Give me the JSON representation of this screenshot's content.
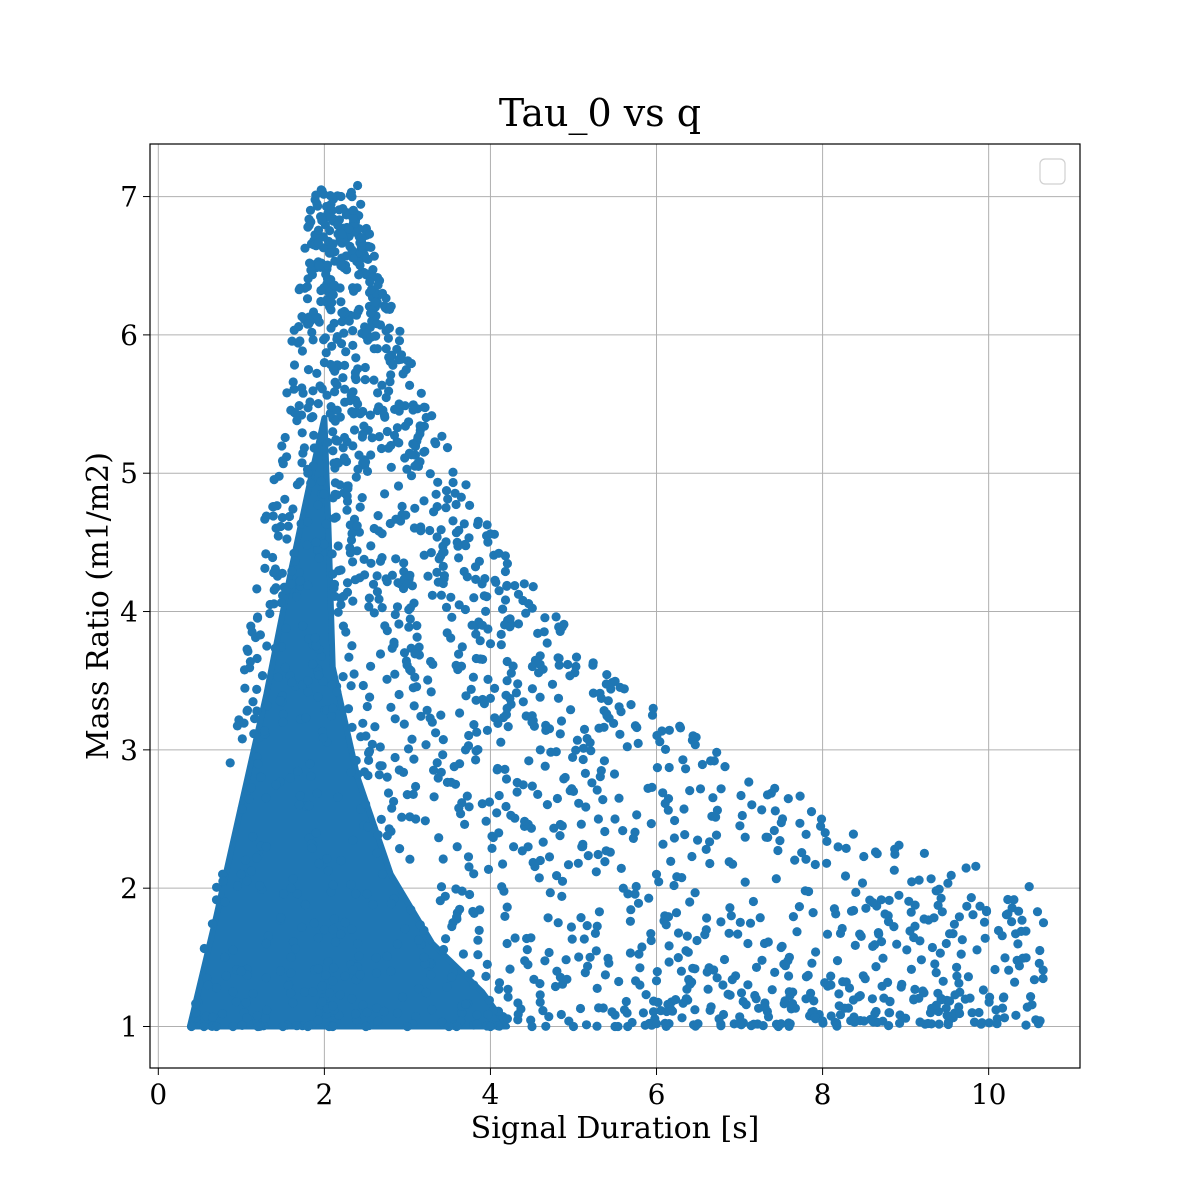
{
  "chart_data": {
    "type": "scatter",
    "title": "Tau_0 vs q",
    "xlabel": "Signal Duration [s]",
    "ylabel": "Mass Ratio (m1/m2)",
    "xlim": [
      -0.1,
      11.1
    ],
    "ylim": [
      0.7,
      7.38
    ],
    "xticks": [
      0,
      2,
      4,
      6,
      8,
      10
    ],
    "yticks": [
      1,
      2,
      3,
      4,
      5,
      6,
      7
    ],
    "grid": true,
    "legend": "upper-right, empty",
    "marker_color": "#1f77b4",
    "series": [
      {
        "x": [
          0.4,
          0.55,
          0.7,
          0.9,
          1.2,
          1.5,
          1.8,
          2.1,
          2.5,
          3.0,
          3.5,
          4.0,
          4.5,
          5.0,
          5.5,
          6.0,
          6.5,
          7.0,
          7.5,
          8.0,
          8.5,
          9.0,
          9.5,
          10.1,
          10.45,
          10.6,
          0.45,
          0.6,
          0.8,
          1.0,
          1.3,
          1.6,
          2.0,
          2.4,
          2.8,
          3.2,
          3.8,
          4.2,
          4.8,
          5.2,
          5.8,
          6.3,
          6.8,
          7.2,
          7.8,
          8.2,
          8.8,
          9.3,
          9.8,
          0.8,
          1.0,
          1.3,
          1.6,
          1.9,
          2.2,
          2.7,
          3.1,
          3.6,
          4.1,
          4.6,
          5.1,
          5.6,
          6.1,
          6.6,
          7.1,
          7.6,
          8.1,
          8.6,
          9.1,
          1.2,
          1.5,
          1.8,
          2.1,
          2.5,
          2.9,
          3.3,
          3.7,
          4.2,
          4.6,
          5.0,
          5.5,
          6.0,
          6.4,
          6.9,
          7.3,
          1.6,
          1.9,
          2.2,
          2.6,
          3.0,
          3.4,
          3.8,
          4.2,
          4.5,
          4.9,
          5.3,
          1.8,
          2.1,
          2.4,
          2.8,
          3.2,
          3.6,
          3.9,
          2.0,
          2.3,
          2.6,
          2.9,
          2.2,
          2.45,
          2.7,
          2.35,
          2.4
        ],
        "y": [
          1.0,
          1.0,
          1.0,
          1.0,
          1.0,
          1.0,
          1.0,
          1.0,
          1.0,
          1.0,
          1.0,
          1.0,
          1.0,
          1.0,
          1.0,
          1.02,
          1.02,
          1.02,
          1.02,
          1.04,
          1.04,
          1.06,
          1.08,
          1.02,
          1.01,
          1.02,
          1.1,
          1.3,
          1.5,
          1.4,
          1.6,
          1.5,
          1.7,
          1.6,
          1.4,
          1.5,
          1.3,
          1.6,
          1.4,
          1.5,
          1.3,
          1.4,
          1.3,
          1.2,
          1.2,
          1.15,
          1.1,
          1.1,
          1.1,
          1.9,
          2.1,
          2.3,
          2.0,
          2.4,
          2.2,
          2.1,
          2.5,
          2.3,
          2.4,
          2.2,
          2.3,
          2.0,
          1.8,
          1.7,
          1.6,
          1.5,
          1.3,
          1.2,
          1.2,
          2.9,
          3.2,
          3.5,
          3.3,
          3.1,
          3.4,
          3.2,
          3.0,
          3.3,
          3.0,
          2.7,
          2.5,
          2.1,
          1.9,
          1.8,
          1.6,
          4.2,
          4.5,
          4.3,
          4.6,
          4.2,
          4.4,
          4.1,
          3.5,
          3.2,
          2.8,
          2.5,
          5.0,
          5.3,
          5.5,
          5.2,
          4.8,
          4.5,
          4.2,
          5.8,
          6.1,
          5.9,
          5.5,
          6.5,
          6.7,
          6.3,
          6.9,
          7.08
        ]
      }
    ]
  }
}
